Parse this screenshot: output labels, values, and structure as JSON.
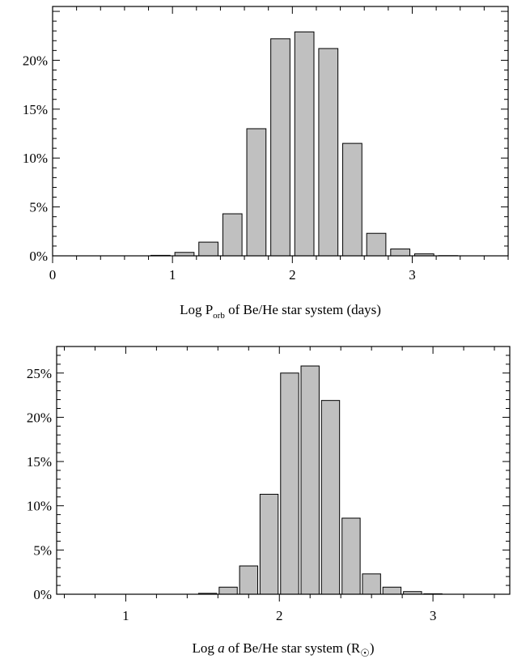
{
  "chart_data": [
    {
      "type": "bar",
      "xlabel": {
        "pre": "Log P",
        "sub": "orb",
        "post": " of Be/He star system (days)"
      },
      "ylabel": "",
      "xlim": [
        0,
        3.8
      ],
      "ylim": [
        0,
        25.5
      ],
      "x_ticks": [
        0,
        1,
        2,
        3
      ],
      "x_tick_labels": [
        "0",
        "1",
        "2",
        "3"
      ],
      "y_ticks": [
        0,
        5,
        10,
        15,
        20
      ],
      "y_tick_labels": [
        "0%",
        "5%",
        "10%",
        "15%",
        "20%"
      ],
      "bar_width": 0.16,
      "x": [
        0.1,
        0.3,
        0.5,
        0.7,
        0.9,
        1.1,
        1.3,
        1.5,
        1.7,
        1.9,
        2.1,
        2.3,
        2.5,
        2.7,
        2.9,
        3.1,
        3.3,
        3.5,
        3.7
      ],
      "values": [
        0,
        0,
        0,
        0,
        0.05,
        0.35,
        1.4,
        4.3,
        13.0,
        22.2,
        22.9,
        21.2,
        11.5,
        2.3,
        0.7,
        0.2,
        0.02,
        0,
        0
      ]
    },
    {
      "type": "bar",
      "xlabel": {
        "pre": "Log ",
        "italic": "a",
        "post": " of Be/He star system (R",
        "sun": "☉",
        "close": ")"
      },
      "ylabel": "",
      "xlim": [
        0.55,
        3.5
      ],
      "ylim": [
        0,
        28
      ],
      "x_ticks": [
        1,
        2,
        3
      ],
      "x_tick_labels": [
        "1",
        "2",
        "3"
      ],
      "y_ticks": [
        0,
        5,
        10,
        15,
        20,
        25
      ],
      "y_tick_labels": [
        "0%",
        "5%",
        "10%",
        "15%",
        "20%",
        "25%"
      ],
      "bar_width": 0.118,
      "x": [
        0.6,
        0.733,
        0.867,
        1.0,
        1.133,
        1.267,
        1.4,
        1.533,
        1.667,
        1.8,
        1.933,
        2.067,
        2.2,
        2.333,
        2.467,
        2.6,
        2.733,
        2.867,
        3.0,
        3.133,
        3.267,
        3.4
      ],
      "values": [
        0,
        0,
        0,
        0,
        0,
        0,
        0,
        0.1,
        0.8,
        3.2,
        11.3,
        25.0,
        25.8,
        21.9,
        8.6,
        2.3,
        0.8,
        0.3,
        0.05,
        0,
        0,
        0
      ]
    }
  ]
}
